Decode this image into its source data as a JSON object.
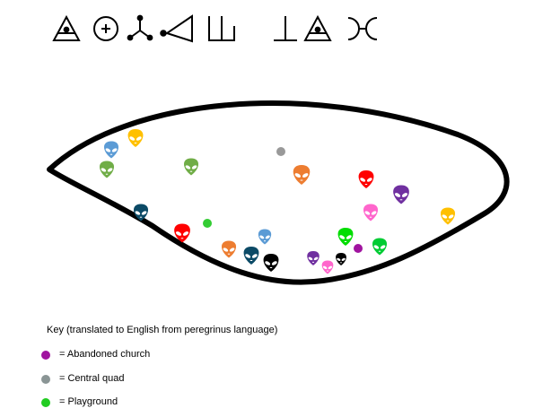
{
  "symbols": {
    "colors": {
      "stroke": "#000000"
    },
    "group_1": [
      "triangle-with-line-and-dot-icon",
      "circled-plus-icon",
      "three-pronged-node-icon",
      "left-triangle-with-dot-icon",
      "trident-box-icon"
    ],
    "group_2": [
      "up-tack-icon",
      "triangle-with-line-and-dot-icon",
      "double-arc-icon"
    ]
  },
  "region": {
    "outline_color": "#000000",
    "fill": "#ffffff"
  },
  "aliens": [
    {
      "color": "#5b9bd5"
    },
    {
      "color": "#ffc000"
    },
    {
      "color": "#70ad47"
    },
    {
      "color": "#70ad47"
    },
    {
      "color": "#ed7d31"
    },
    {
      "color": "#ff0000"
    },
    {
      "color": "#7030a0"
    },
    {
      "color": "#0b4a66"
    },
    {
      "color": "#ff66cc"
    },
    {
      "color": "#ffc000"
    },
    {
      "color": "#ff0000"
    },
    {
      "color": "#00dd00"
    },
    {
      "color": "#5b9bd5"
    },
    {
      "color": "#ed7d31"
    },
    {
      "color": "#0b4a66"
    },
    {
      "color": "#000000"
    },
    {
      "color": "#7030a0"
    },
    {
      "color": "#ff66cc"
    },
    {
      "color": "#000000"
    },
    {
      "color": "#00cc33"
    }
  ],
  "markers": [
    {
      "type": "central-quad",
      "color": "#999999"
    },
    {
      "type": "playground",
      "color": "#33cc33"
    },
    {
      "type": "abandoned-church",
      "color": "#a0149f"
    }
  ],
  "key": {
    "title": "Key (translated to English from peregrinus language)",
    "items": [
      {
        "color": "#a0149f",
        "label": "= Abandoned church"
      },
      {
        "color": "#8a9595",
        "label": "= Central quad"
      },
      {
        "color": "#22cc22",
        "label": "= Playground"
      }
    ]
  }
}
